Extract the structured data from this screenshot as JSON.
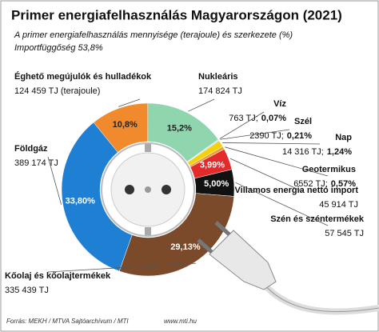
{
  "chart_data": {
    "type": "donut",
    "title": "Primer energiafelhasználás Magyarországon (2021)",
    "subtitle": [
      "A primer energiafelhasználás mennyisége (terajoule) és szerkezete (%)",
      "Importfüggőség 53,8%"
    ],
    "categories": [
      "Éghető megújulók és hulladékok",
      "Nukleáris",
      "Víz",
      "Szél",
      "Nap",
      "Geotermikus",
      "Villamos energia nettó import",
      "Szén és széntermékek",
      "Kőolaj és kőolajtermékek",
      "Földgáz"
    ],
    "amount_labels": [
      "124 459 TJ (terajoule)",
      "174 824 TJ",
      "763 TJ;",
      "2390 TJ;",
      "14 316 TJ;",
      "6552 TJ;",
      "45 914 TJ",
      "57 545 TJ",
      "335 439 TJ",
      "389 174 TJ"
    ],
    "values": [
      10.8,
      15.2,
      0.07,
      0.21,
      1.24,
      0.57,
      3.99,
      5.0,
      29.13,
      33.8
    ],
    "value_labels": [
      "10,8%",
      "15,2%",
      "0,07%",
      "0,21%",
      "1,24%",
      "0,57%",
      "3,99%",
      "5,00%",
      "29,13%",
      "33,80%"
    ],
    "colors": [
      "#f08a2c",
      "#8fd6ae",
      "#4fb8e0",
      "#c9d8e0",
      "#f4d20a",
      "#e8a040",
      "#e42a2a",
      "#111111",
      "#7b4a2a",
      "#1f7fd2"
    ],
    "source": "Forrás: MEKH / MTVA Sajtóarchívum / MTI",
    "website": "www.mti.hu"
  }
}
